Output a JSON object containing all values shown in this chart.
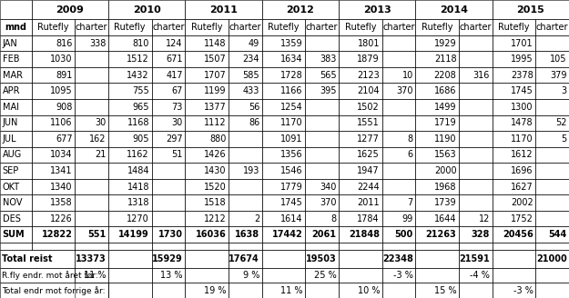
{
  "year_headers": [
    "2009",
    "2010",
    "2011",
    "2012",
    "2013",
    "2014",
    "2015"
  ],
  "col_headers": [
    "mnd",
    "Rutefly",
    "charter",
    "Rutefly",
    "charter",
    "Rutefly",
    "charter",
    "Rutefly",
    "charter",
    "Rutefly",
    "charter",
    "Rutefly",
    "charter",
    "Rutefly",
    "charter"
  ],
  "table_data": [
    [
      "JAN",
      "816",
      "338",
      "810",
      "124",
      "1148",
      "49",
      "1359",
      "",
      "1801",
      "",
      "1929",
      "",
      "1701",
      ""
    ],
    [
      "FEB",
      "1030",
      "",
      "1512",
      "671",
      "1507",
      "234",
      "1634",
      "383",
      "1879",
      "",
      "2118",
      "",
      "1995",
      "105"
    ],
    [
      "MAR",
      "891",
      "",
      "1432",
      "417",
      "1707",
      "585",
      "1728",
      "565",
      "2123",
      "10",
      "2208",
      "316",
      "2378",
      "379"
    ],
    [
      "APR",
      "1095",
      "",
      "755",
      "67",
      "1199",
      "433",
      "1166",
      "395",
      "2104",
      "370",
      "1686",
      "",
      "1745",
      "3"
    ],
    [
      "MAI",
      "908",
      "",
      "965",
      "73",
      "1377",
      "56",
      "1254",
      "",
      "1502",
      "",
      "1499",
      "",
      "1300",
      ""
    ],
    [
      "JUN",
      "1106",
      "30",
      "1168",
      "30",
      "1112",
      "86",
      "1170",
      "",
      "1551",
      "",
      "1719",
      "",
      "1478",
      "52"
    ],
    [
      "JUL",
      "677",
      "162",
      "905",
      "297",
      "880",
      "",
      "1091",
      "",
      "1277",
      "8",
      "1190",
      "",
      "1170",
      "5"
    ],
    [
      "AUG",
      "1034",
      "21",
      "1162",
      "51",
      "1426",
      "",
      "1356",
      "",
      "1625",
      "6",
      "1563",
      "",
      "1612",
      ""
    ],
    [
      "SEP",
      "1341",
      "",
      "1484",
      "",
      "1430",
      "193",
      "1546",
      "",
      "1947",
      "",
      "2000",
      "",
      "1696",
      ""
    ],
    [
      "OKT",
      "1340",
      "",
      "1418",
      "",
      "1520",
      "",
      "1779",
      "340",
      "2244",
      "",
      "1968",
      "",
      "1627",
      ""
    ],
    [
      "NOV",
      "1358",
      "",
      "1318",
      "",
      "1518",
      "",
      "1745",
      "370",
      "2011",
      "7",
      "1739",
      "",
      "2002",
      ""
    ],
    [
      "DES",
      "1226",
      "",
      "1270",
      "",
      "1212",
      "2",
      "1614",
      "8",
      "1784",
      "99",
      "1644",
      "12",
      "1752",
      ""
    ],
    [
      "SUM",
      "12822",
      "551",
      "14199",
      "1730",
      "16036",
      "1638",
      "17442",
      "2061",
      "21848",
      "500",
      "21263",
      "328",
      "20456",
      "544"
    ]
  ],
  "total_reist_label": "Total reist",
  "total_reist_vals": [
    "13373",
    "15929",
    "17674",
    "19503",
    "22348",
    "21591",
    "21000"
  ],
  "rfly_endr_label": "R.fly endr. mot året før:",
  "rfly_endr_vals": [
    "11 %",
    "13 %",
    "9 %",
    "25 %",
    "-3 %",
    "-4 %",
    ""
  ],
  "total_endr_label": "Total endr mot forrige år:",
  "total_endr_vals": [
    "",
    "19 %",
    "11 %",
    "10 %",
    "15 %",
    "-3 %",
    "-3 %"
  ],
  "col_widths_raw": [
    3.2,
    4.4,
    3.4,
    4.4,
    3.4,
    4.4,
    3.4,
    4.4,
    3.4,
    4.4,
    3.4,
    4.4,
    3.4,
    4.4,
    3.4
  ],
  "row_heights_raw": [
    1.15,
    0.95,
    0.95,
    0.95,
    0.95,
    0.95,
    0.95,
    0.95,
    0.95,
    0.95,
    0.95,
    0.95,
    0.95,
    0.95,
    0.95,
    0.45,
    1.05,
    0.9,
    0.9
  ],
  "cell_fontsize": 7,
  "header_fontsize": 8,
  "sum_fontsize": 7,
  "footer_fontsize": 7
}
